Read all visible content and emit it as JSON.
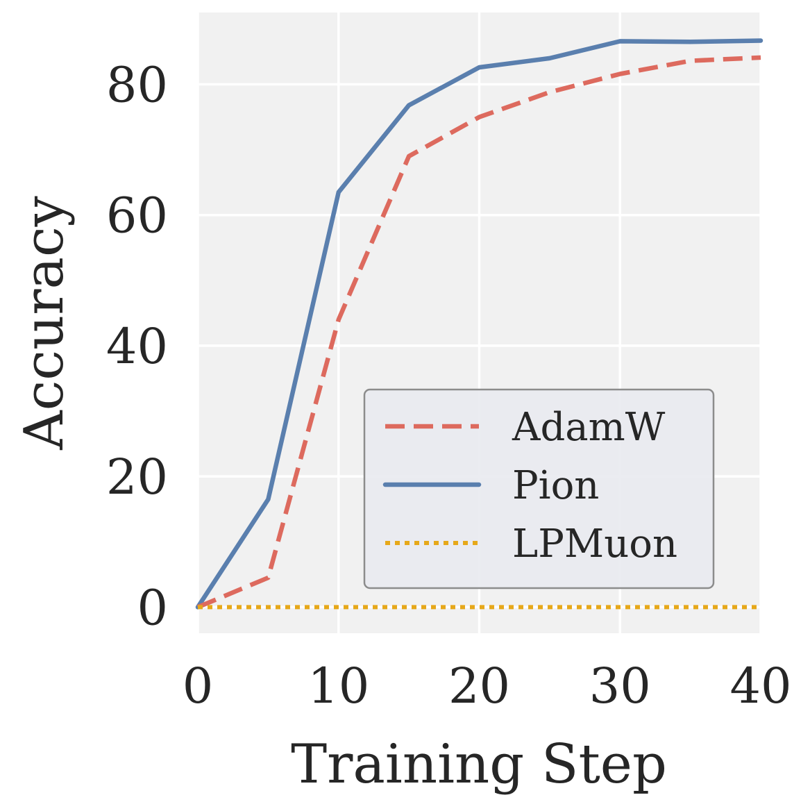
{
  "chart_data": {
    "type": "line",
    "title": "",
    "xlabel": "Training Step",
    "ylabel": "Accuracy",
    "xlim": [
      0,
      40
    ],
    "ylim": [
      -4,
      91
    ],
    "xticks": [
      0,
      10,
      20,
      30,
      40
    ],
    "xtick_labels": [
      "0",
      "10",
      "20",
      "30",
      "40"
    ],
    "yticks": [
      0,
      20,
      40,
      60,
      80
    ],
    "ytick_labels": [
      "0",
      "20",
      "40",
      "60",
      "80"
    ],
    "grid": true,
    "legend_position": "lower-right",
    "series": [
      {
        "name": "AdamW",
        "style": "dashed",
        "color": "#dd6a5e",
        "x": [
          0,
          5,
          10,
          15,
          20,
          25,
          30,
          35,
          40
        ],
        "y": [
          0,
          4.5,
          44,
          69,
          75,
          78.8,
          81.6,
          83.6,
          84.1
        ]
      },
      {
        "name": "Pion",
        "style": "solid",
        "color": "#5a7fae",
        "x": [
          0,
          5,
          10,
          15,
          20,
          25,
          30,
          35,
          40
        ],
        "y": [
          0,
          16.5,
          63.5,
          76.8,
          82.6,
          84,
          86.6,
          86.5,
          86.7
        ]
      },
      {
        "name": "LPMuon",
        "style": "dotted",
        "color": "#e6a81a",
        "x": [
          0,
          5,
          10,
          15,
          20,
          25,
          30,
          35,
          40
        ],
        "y": [
          0,
          0,
          0,
          0,
          0,
          0,
          0,
          0,
          0
        ]
      }
    ]
  },
  "colors": {
    "plot_background": "#f1f1f1",
    "grid": "#ffffff",
    "legend_background": "#e9eaf0",
    "legend_border": "#8c8c8c",
    "text": "#262626"
  }
}
